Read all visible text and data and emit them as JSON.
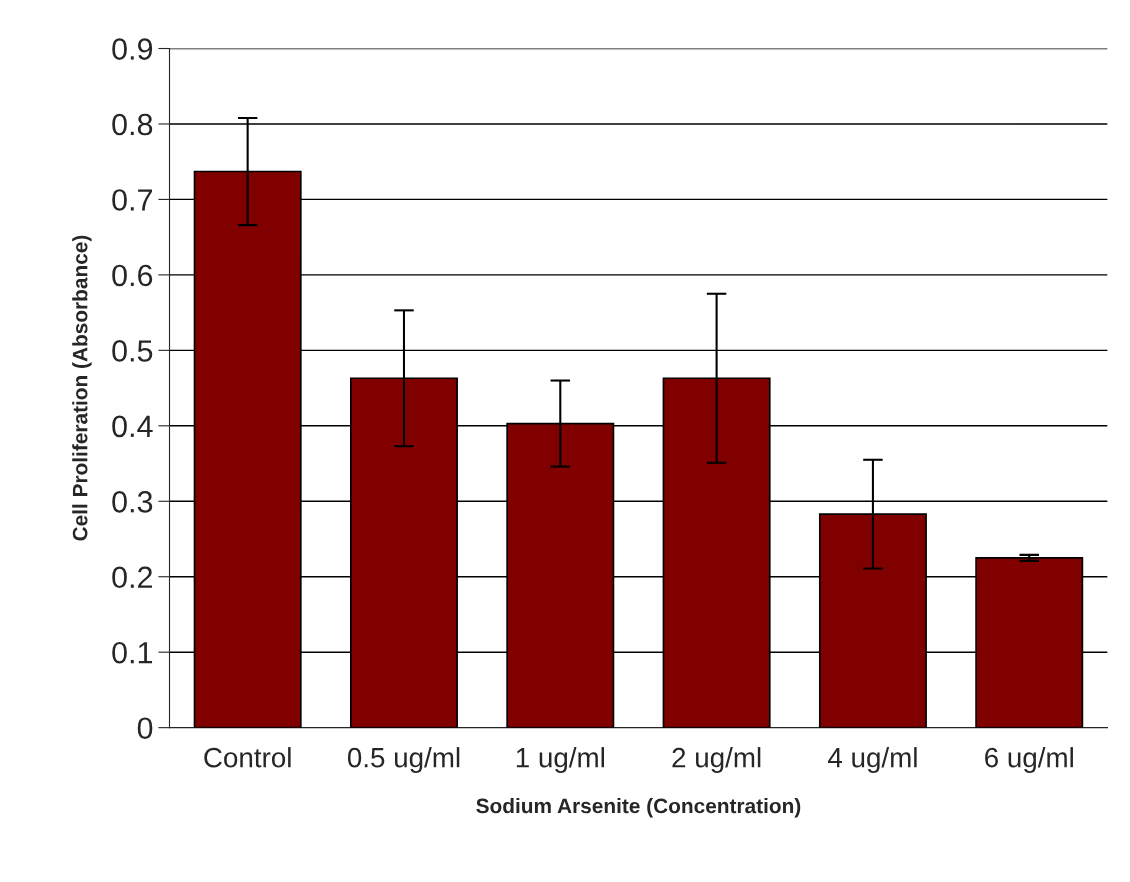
{
  "chart_data": {
    "type": "bar",
    "xlabel": "Sodium Arsenite (Concentration)",
    "ylabel": "Cell Proliferation (Absorbance)",
    "categories": [
      "Control",
      "0.5 ug/ml",
      "1 ug/ml",
      "2 ug/ml",
      "4 ug/ml",
      "6 ug/ml"
    ],
    "values": [
      0.737,
      0.463,
      0.403,
      0.463,
      0.283,
      0.225
    ],
    "errors": [
      0.071,
      0.09,
      0.057,
      0.112,
      0.072,
      0.004
    ],
    "color": "#800000",
    "ylim": [
      0,
      0.9
    ],
    "yticks": [
      0,
      0.1,
      0.2,
      0.3,
      0.4,
      0.5,
      0.6,
      0.7,
      0.8,
      0.9
    ],
    "grid": "y"
  }
}
